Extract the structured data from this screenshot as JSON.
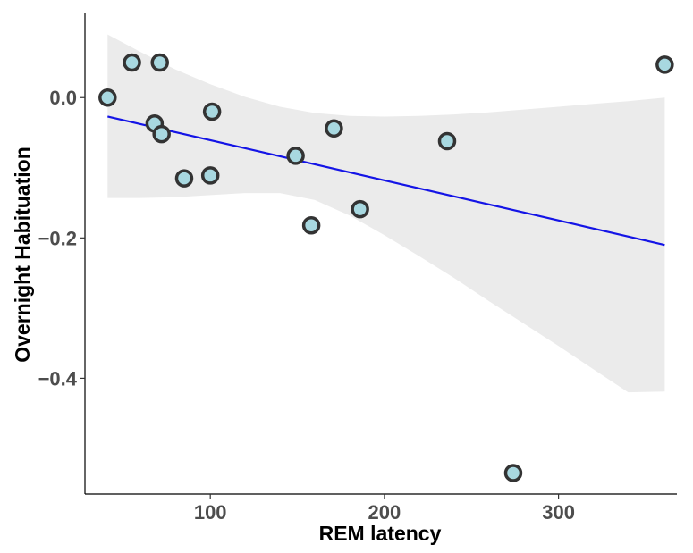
{
  "chart_data": {
    "type": "scatter",
    "title": "",
    "xlabel": "REM latency",
    "ylabel": "Overnight Habituation",
    "xlim": [
      28,
      368
    ],
    "ylim": [
      -0.565,
      0.12
    ],
    "x_ticks": [
      100,
      200,
      300
    ],
    "x_tick_labels": [
      "100",
      "200",
      "300"
    ],
    "y_ticks": [
      0.0,
      -0.2,
      -0.4
    ],
    "y_tick_labels": [
      "0.0",
      "−0.2",
      "−0.4"
    ],
    "grid": false,
    "legend": "none",
    "points": [
      {
        "x": 41,
        "y": 0.0
      },
      {
        "x": 55,
        "y": 0.05
      },
      {
        "x": 71,
        "y": 0.05
      },
      {
        "x": 68,
        "y": -0.037
      },
      {
        "x": 72,
        "y": -0.052
      },
      {
        "x": 101,
        "y": -0.02
      },
      {
        "x": 85,
        "y": -0.115
      },
      {
        "x": 100,
        "y": -0.111
      },
      {
        "x": 149,
        "y": -0.083
      },
      {
        "x": 171,
        "y": -0.044
      },
      {
        "x": 158,
        "y": -0.182
      },
      {
        "x": 186,
        "y": -0.159
      },
      {
        "x": 236,
        "y": -0.062
      },
      {
        "x": 274,
        "y": -0.535
      },
      {
        "x": 361,
        "y": 0.047
      }
    ],
    "trend_line": {
      "x": [
        41,
        361
      ],
      "y": [
        -0.027,
        -0.21
      ]
    },
    "confidence_band": {
      "x": [
        41,
        60,
        80,
        100,
        120,
        140,
        160,
        180,
        200,
        220,
        240,
        260,
        280,
        300,
        320,
        340,
        361
      ],
      "upper": [
        0.09,
        0.065,
        0.04,
        0.019,
        0.001,
        -0.013,
        -0.022,
        -0.026,
        -0.027,
        -0.026,
        -0.024,
        -0.021,
        -0.017,
        -0.013,
        -0.009,
        -0.005,
        0.0
      ],
      "lower": [
        -0.143,
        -0.143,
        -0.142,
        -0.139,
        -0.136,
        -0.136,
        -0.146,
        -0.168,
        -0.196,
        -0.226,
        -0.257,
        -0.29,
        -0.322,
        -0.354,
        -0.387,
        -0.42,
        -0.419
      ]
    },
    "colors": {
      "point_fill": "#a8d8e0",
      "point_stroke": "#333333",
      "line": "#1414e6",
      "band": "#ebebeb",
      "axis": "#000000"
    }
  }
}
